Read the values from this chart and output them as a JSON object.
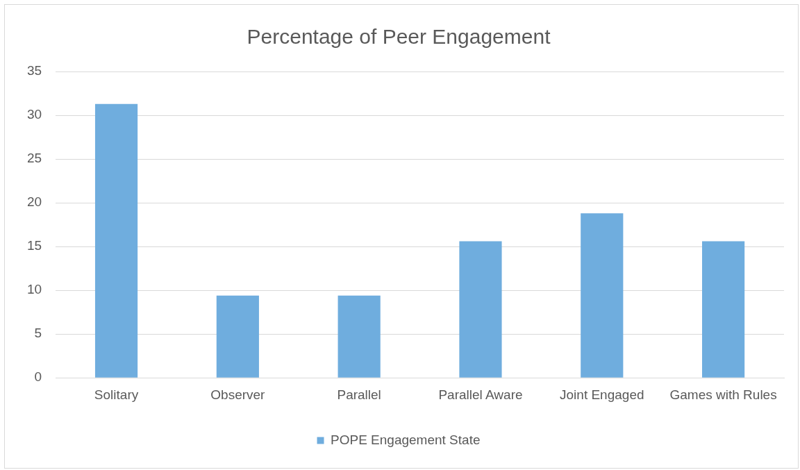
{
  "chart_data": {
    "type": "bar",
    "title": "Percentage of Peer Engagement",
    "categories": [
      "Solitary",
      "Observer",
      "Parallel",
      "Parallel Aware",
      "Joint Engaged",
      "Games with Rules"
    ],
    "series": [
      {
        "name": "POPE Engagement State",
        "color": "#6fadde",
        "values": [
          31.3,
          9.4,
          9.4,
          15.6,
          18.8,
          15.6
        ]
      }
    ],
    "ylim": [
      0,
      35
    ],
    "yticks": [
      0,
      5,
      10,
      15,
      20,
      25,
      30,
      35
    ],
    "grid": "y",
    "legend": "bottom"
  }
}
